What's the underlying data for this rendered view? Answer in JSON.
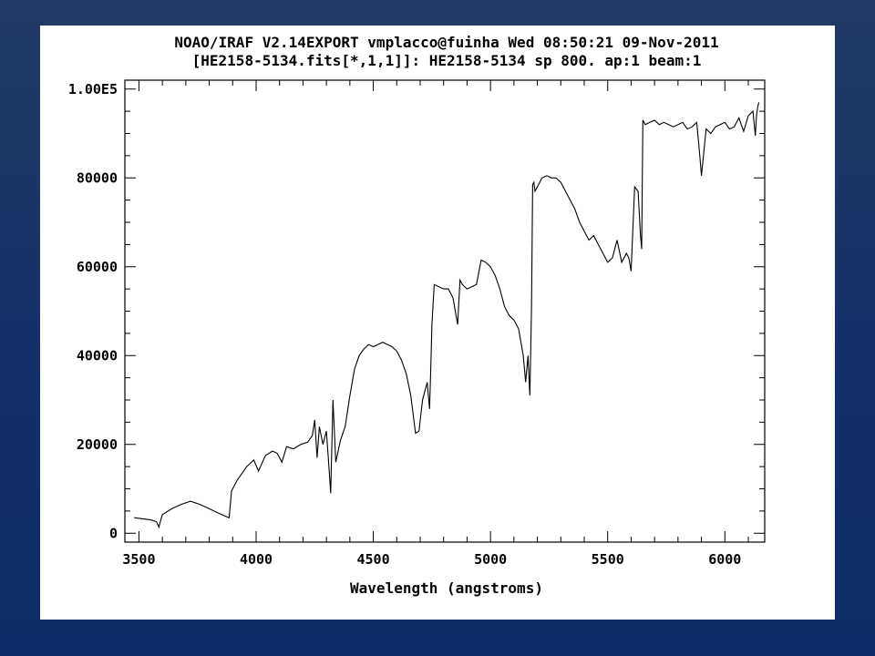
{
  "slide": {
    "background_colors": [
      "#223a64",
      "#0b2c68"
    ],
    "panel_color": "#ffffff"
  },
  "chart_data": {
    "type": "line",
    "title_line1": "NOAO/IRAF V2.14EXPORT vmplacco@fuinha Wed 08:50:21 09-Nov-2011",
    "title_line2": "[HE2158-5134.fits[*,1,1]]: HE2158-5134 sp 800. ap:1 beam:1",
    "xlabel": "Wavelength (angstroms)",
    "ylabel": "",
    "xlim": [
      3440,
      6170
    ],
    "ylim": [
      -2000,
      102000
    ],
    "x_ticks": [
      3500,
      4000,
      4500,
      5000,
      5500,
      6000
    ],
    "x_tick_labels": [
      "3500",
      "4000",
      "4500",
      "5000",
      "5500",
      "6000"
    ],
    "y_ticks": [
      0,
      20000,
      40000,
      60000,
      80000,
      100000
    ],
    "y_tick_labels": [
      "0",
      "20000",
      "40000",
      "60000",
      "80000",
      "1.00E5"
    ],
    "grid": false,
    "line_color": "#000000",
    "series": [
      {
        "x": [
          3480,
          3520,
          3550,
          3575,
          3585,
          3600,
          3640,
          3680,
          3720,
          3760,
          3800,
          3840,
          3870,
          3885,
          3895,
          3920,
          3940,
          3960,
          3990,
          4010,
          4040,
          4070,
          4090,
          4110,
          4130,
          4160,
          4190,
          4220,
          4240,
          4250,
          4260,
          4270,
          4285,
          4300,
          4310,
          4318,
          4328,
          4340,
          4360,
          4380,
          4400,
          4420,
          4440,
          4460,
          4480,
          4500,
          4520,
          4540,
          4560,
          4580,
          4600,
          4620,
          4640,
          4660,
          4680,
          4695,
          4710,
          4730,
          4740,
          4745,
          4750,
          4760,
          4780,
          4800,
          4820,
          4840,
          4860,
          4870,
          4880,
          4900,
          4920,
          4940,
          4960,
          4980,
          5000,
          5020,
          5040,
          5060,
          5080,
          5100,
          5120,
          5140,
          5150,
          5160,
          5168,
          5175,
          5180,
          5185,
          5190,
          5200,
          5220,
          5240,
          5260,
          5280,
          5300,
          5320,
          5340,
          5360,
          5380,
          5400,
          5420,
          5440,
          5460,
          5480,
          5500,
          5520,
          5540,
          5560,
          5580,
          5590,
          5600,
          5615,
          5630,
          5640,
          5645,
          5650,
          5660,
          5680,
          5700,
          5720,
          5740,
          5760,
          5780,
          5800,
          5820,
          5840,
          5860,
          5880,
          5893,
          5900,
          5920,
          5940,
          5960,
          5980,
          6000,
          6020,
          6040,
          6060,
          6070,
          6080,
          6100,
          6120,
          6130,
          6135,
          6140,
          6145
        ],
        "y": [
          3500,
          3200,
          3000,
          2600,
          1400,
          4200,
          5500,
          6500,
          7200,
          6500,
          5500,
          4500,
          3800,
          3500,
          9500,
          12000,
          13500,
          15000,
          16500,
          14000,
          17500,
          18500,
          18000,
          16000,
          19500,
          19000,
          20000,
          20500,
          22000,
          25500,
          17000,
          24000,
          20000,
          23000,
          15500,
          9000,
          30000,
          16000,
          21000,
          24000,
          31000,
          37000,
          40000,
          41500,
          42500,
          42000,
          42500,
          43000,
          42500,
          42000,
          41000,
          39000,
          36000,
          31000,
          22500,
          23000,
          30000,
          34000,
          28000,
          37000,
          47000,
          56000,
          55500,
          55000,
          55000,
          53000,
          47000,
          57000,
          56000,
          55000,
          55500,
          56000,
          61500,
          61000,
          60000,
          58000,
          55000,
          51000,
          49000,
          48000,
          46000,
          40000,
          34000,
          40000,
          31000,
          50000,
          78500,
          79000,
          77000,
          78000,
          80000,
          80500,
          80000,
          80000,
          79000,
          77000,
          75000,
          73000,
          70000,
          68000,
          66000,
          67000,
          65000,
          63000,
          61000,
          62000,
          66000,
          61000,
          63000,
          62000,
          59000,
          78000,
          77000,
          67000,
          64000,
          93000,
          92000,
          92500,
          93000,
          92000,
          92500,
          92000,
          91500,
          92000,
          92500,
          91000,
          91500,
          92500,
          85000,
          80500,
          91000,
          90000,
          91500,
          92000,
          92500,
          91000,
          91500,
          93500,
          92000,
          90500,
          94000,
          95000,
          89500,
          94000,
          96000,
          97000
        ]
      }
    ]
  }
}
